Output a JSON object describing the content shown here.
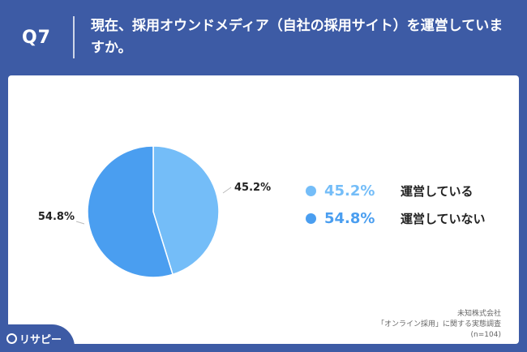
{
  "header": {
    "question_number": "Q7",
    "question_text": "現在、採用オウンドメディア（自社の採用サイト）を運営していますか。"
  },
  "chart_data": {
    "type": "pie",
    "series": [
      {
        "name": "運営している",
        "value": 45.2,
        "label": "45.2%",
        "color": "#74bdf8"
      },
      {
        "name": "運営していない",
        "value": 54.8,
        "label": "54.8%",
        "color": "#4a9ef0"
      }
    ],
    "legend_position": "right"
  },
  "source": {
    "line1": "未知株式会社",
    "line2": "「オンライン採用」に関する実態調査",
    "line3": "(n=104)"
  },
  "logo": {
    "text": "リサピー"
  }
}
